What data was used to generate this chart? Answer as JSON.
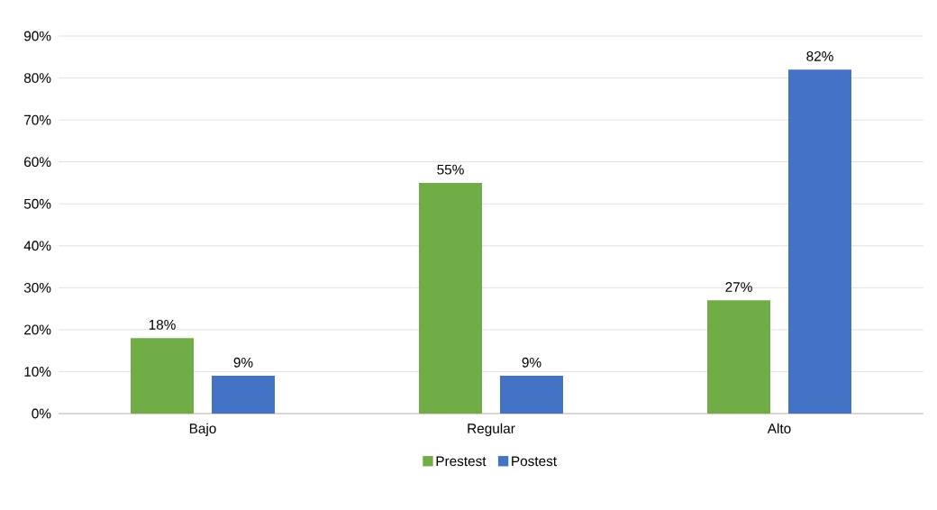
{
  "chart_data": {
    "type": "bar",
    "categories": [
      "Bajo",
      "Regular",
      "Alto"
    ],
    "series": [
      {
        "name": "Prestest",
        "color": "#70ad47",
        "values": [
          18,
          55,
          27
        ],
        "value_labels": [
          "18%",
          "55%",
          "27%"
        ]
      },
      {
        "name": "Postest",
        "color": "#4472c4",
        "values": [
          9,
          9,
          82
        ],
        "value_labels": [
          "9%",
          "9%",
          "82%"
        ]
      }
    ],
    "ylim": [
      0,
      90
    ],
    "yticks": [
      {
        "value": 0,
        "label": "0%"
      },
      {
        "value": 10,
        "label": "10%"
      },
      {
        "value": 20,
        "label": "20%"
      },
      {
        "value": 30,
        "label": "30%"
      },
      {
        "value": 40,
        "label": "40%"
      },
      {
        "value": 50,
        "label": "50%"
      },
      {
        "value": 60,
        "label": "60%"
      },
      {
        "value": 70,
        "label": "70%"
      },
      {
        "value": 80,
        "label": "80%"
      },
      {
        "value": 90,
        "label": "90%"
      }
    ],
    "grid": "y",
    "legend": "bottom"
  }
}
